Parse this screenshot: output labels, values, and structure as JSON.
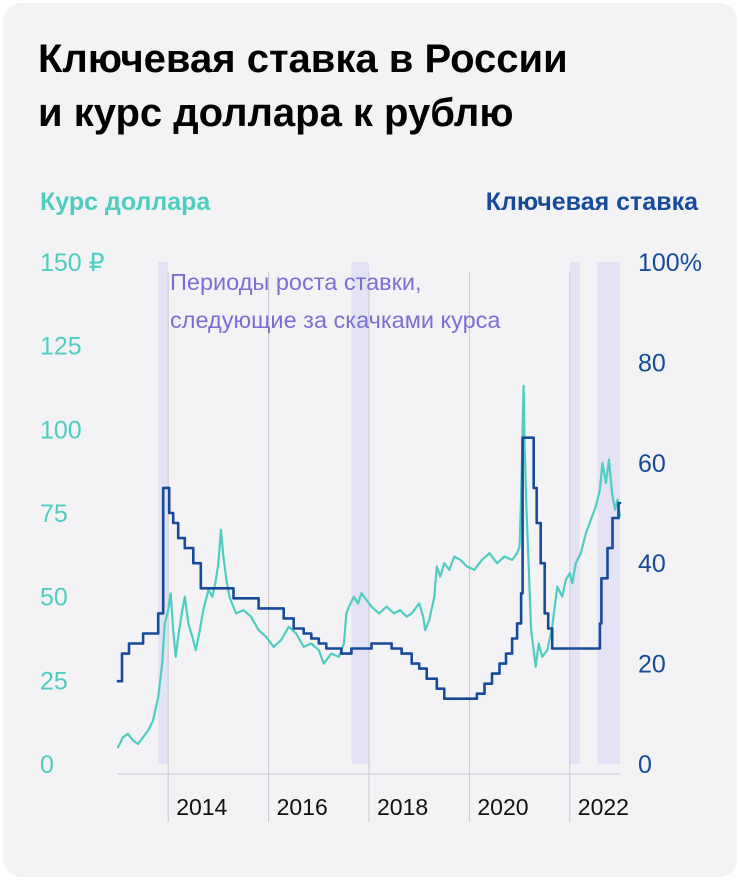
{
  "title": {
    "line1": "Ключевая ставка в России",
    "line2": "и курс доллара к рублю"
  },
  "legend": {
    "left": "Курс доллара",
    "right": "Ключевая ставка"
  },
  "colors": {
    "usd": "#4ecdc0",
    "rate": "#174a99",
    "period_fill": "#e4e3f5",
    "annotation": "#7b6fd4",
    "grid": "#c9c9cf"
  },
  "chart_data": {
    "type": "line",
    "title": "Ключевая ставка в России и курс доллара к рублю",
    "x_range": [
      2013.0,
      2023.0
    ],
    "x_ticks": [
      "2014",
      "2016",
      "2018",
      "2020",
      "2022"
    ],
    "x_tick_values": [
      2014,
      2016,
      2018,
      2020,
      2022
    ],
    "y_left": {
      "label": "Курс доллара",
      "range": [
        0,
        150
      ],
      "ticks": [
        "0",
        "25",
        "50",
        "75",
        "100",
        "125",
        "150 ₽"
      ],
      "tick_values": [
        0,
        25,
        50,
        75,
        100,
        125,
        150
      ]
    },
    "y_right": {
      "label": "Ключевая ставка",
      "range": [
        0,
        100
      ],
      "ticks": [
        "0",
        "20",
        "40",
        "60",
        "80",
        "100%"
      ],
      "tick_values": [
        0,
        20,
        40,
        60,
        80,
        100
      ]
    },
    "annotation": {
      "line1": "Периоды роста ставки,",
      "line2": "следующие за скачками курса"
    },
    "highlight_periods": [
      [
        2013.8,
        2014.0
      ],
      [
        2017.65,
        2018.0
      ],
      [
        2022.0,
        2022.2
      ],
      [
        2022.55,
        2023.0
      ]
    ],
    "series": [
      {
        "name": "Курс доллара",
        "axis": "left",
        "step": false,
        "points": [
          [
            2013.0,
            5
          ],
          [
            2013.1,
            8
          ],
          [
            2013.2,
            9
          ],
          [
            2013.3,
            7
          ],
          [
            2013.4,
            6
          ],
          [
            2013.5,
            8
          ],
          [
            2013.6,
            10
          ],
          [
            2013.7,
            13
          ],
          [
            2013.8,
            20
          ],
          [
            2013.88,
            30
          ],
          [
            2013.93,
            42
          ],
          [
            2014.0,
            46
          ],
          [
            2014.05,
            51
          ],
          [
            2014.1,
            40
          ],
          [
            2014.15,
            32
          ],
          [
            2014.2,
            38
          ],
          [
            2014.28,
            46
          ],
          [
            2014.33,
            50
          ],
          [
            2014.4,
            42
          ],
          [
            2014.48,
            38
          ],
          [
            2014.55,
            34
          ],
          [
            2014.63,
            40
          ],
          [
            2014.7,
            46
          ],
          [
            2014.8,
            52
          ],
          [
            2014.88,
            50
          ],
          [
            2014.95,
            55
          ],
          [
            2015.0,
            60
          ],
          [
            2015.05,
            70
          ],
          [
            2015.1,
            62
          ],
          [
            2015.16,
            55
          ],
          [
            2015.22,
            50
          ],
          [
            2015.35,
            45
          ],
          [
            2015.5,
            46
          ],
          [
            2015.65,
            44
          ],
          [
            2015.8,
            40
          ],
          [
            2015.95,
            38
          ],
          [
            2016.1,
            35
          ],
          [
            2016.25,
            37
          ],
          [
            2016.4,
            41
          ],
          [
            2016.55,
            39
          ],
          [
            2016.7,
            35
          ],
          [
            2016.85,
            36
          ],
          [
            2017.0,
            34
          ],
          [
            2017.1,
            30
          ],
          [
            2017.25,
            33
          ],
          [
            2017.4,
            32
          ],
          [
            2017.5,
            36
          ],
          [
            2017.55,
            45
          ],
          [
            2017.6,
            47
          ],
          [
            2017.7,
            50
          ],
          [
            2017.78,
            48
          ],
          [
            2017.85,
            51
          ],
          [
            2017.95,
            49
          ],
          [
            2018.05,
            47
          ],
          [
            2018.2,
            45
          ],
          [
            2018.35,
            47
          ],
          [
            2018.5,
            45
          ],
          [
            2018.62,
            46
          ],
          [
            2018.75,
            44
          ],
          [
            2018.85,
            45
          ],
          [
            2018.95,
            47
          ],
          [
            2019.0,
            48
          ],
          [
            2019.08,
            44
          ],
          [
            2019.12,
            40
          ],
          [
            2019.2,
            43
          ],
          [
            2019.3,
            50
          ],
          [
            2019.35,
            59
          ],
          [
            2019.42,
            56
          ],
          [
            2019.5,
            60
          ],
          [
            2019.6,
            58
          ],
          [
            2019.7,
            62
          ],
          [
            2019.82,
            61
          ],
          [
            2019.95,
            59
          ],
          [
            2020.1,
            58
          ],
          [
            2020.25,
            61
          ],
          [
            2020.4,
            63
          ],
          [
            2020.55,
            60
          ],
          [
            2020.7,
            62
          ],
          [
            2020.85,
            61
          ],
          [
            2020.95,
            63
          ],
          [
            2021.0,
            65
          ],
          [
            2021.03,
            80
          ],
          [
            2021.06,
            100
          ],
          [
            2021.08,
            113
          ],
          [
            2021.1,
            95
          ],
          [
            2021.14,
            75
          ],
          [
            2021.18,
            60
          ],
          [
            2021.23,
            40
          ],
          [
            2021.28,
            34
          ],
          [
            2021.32,
            29
          ],
          [
            2021.38,
            36
          ],
          [
            2021.45,
            32
          ],
          [
            2021.55,
            34
          ],
          [
            2021.65,
            41
          ],
          [
            2021.75,
            53
          ],
          [
            2021.85,
            50
          ],
          [
            2021.92,
            55
          ],
          [
            2022.0,
            57
          ],
          [
            2022.05,
            54
          ],
          [
            2022.12,
            60
          ],
          [
            2022.22,
            63
          ],
          [
            2022.32,
            69
          ],
          [
            2022.42,
            73
          ],
          [
            2022.52,
            77
          ],
          [
            2022.6,
            82
          ],
          [
            2022.65,
            90
          ],
          [
            2022.72,
            84
          ],
          [
            2022.78,
            91
          ],
          [
            2022.84,
            81
          ],
          [
            2022.9,
            76
          ],
          [
            2022.95,
            79
          ],
          [
            2023.0,
            74
          ]
        ]
      },
      {
        "name": "Ключевая ставка",
        "axis": "right",
        "step": true,
        "points": [
          [
            2013.0,
            16.5
          ],
          [
            2013.08,
            22
          ],
          [
            2013.22,
            24
          ],
          [
            2013.5,
            26
          ],
          [
            2013.8,
            30
          ],
          [
            2013.9,
            55
          ],
          [
            2014.02,
            50
          ],
          [
            2014.1,
            48
          ],
          [
            2014.2,
            45
          ],
          [
            2014.33,
            43
          ],
          [
            2014.5,
            40
          ],
          [
            2014.65,
            35
          ],
          [
            2015.3,
            33
          ],
          [
            2015.8,
            31
          ],
          [
            2016.3,
            29
          ],
          [
            2016.5,
            27
          ],
          [
            2016.7,
            26
          ],
          [
            2016.85,
            25
          ],
          [
            2017.0,
            24
          ],
          [
            2017.15,
            23
          ],
          [
            2017.45,
            22
          ],
          [
            2017.65,
            23
          ],
          [
            2018.05,
            24
          ],
          [
            2018.45,
            23
          ],
          [
            2018.65,
            22
          ],
          [
            2018.85,
            20
          ],
          [
            2019.0,
            19
          ],
          [
            2019.15,
            17
          ],
          [
            2019.35,
            15
          ],
          [
            2019.5,
            13
          ],
          [
            2020.15,
            14
          ],
          [
            2020.3,
            16
          ],
          [
            2020.45,
            18
          ],
          [
            2020.6,
            20
          ],
          [
            2020.73,
            22
          ],
          [
            2020.85,
            25
          ],
          [
            2020.95,
            28
          ],
          [
            2021.03,
            34
          ],
          [
            2021.06,
            65
          ],
          [
            2021.28,
            55
          ],
          [
            2021.34,
            48
          ],
          [
            2021.42,
            40
          ],
          [
            2021.5,
            30
          ],
          [
            2021.57,
            27
          ],
          [
            2021.65,
            23
          ],
          [
            2022.6,
            28
          ],
          [
            2022.63,
            37
          ],
          [
            2022.75,
            43
          ],
          [
            2022.85,
            49
          ],
          [
            2022.97,
            52
          ],
          [
            2023.0,
            52
          ]
        ]
      }
    ]
  }
}
